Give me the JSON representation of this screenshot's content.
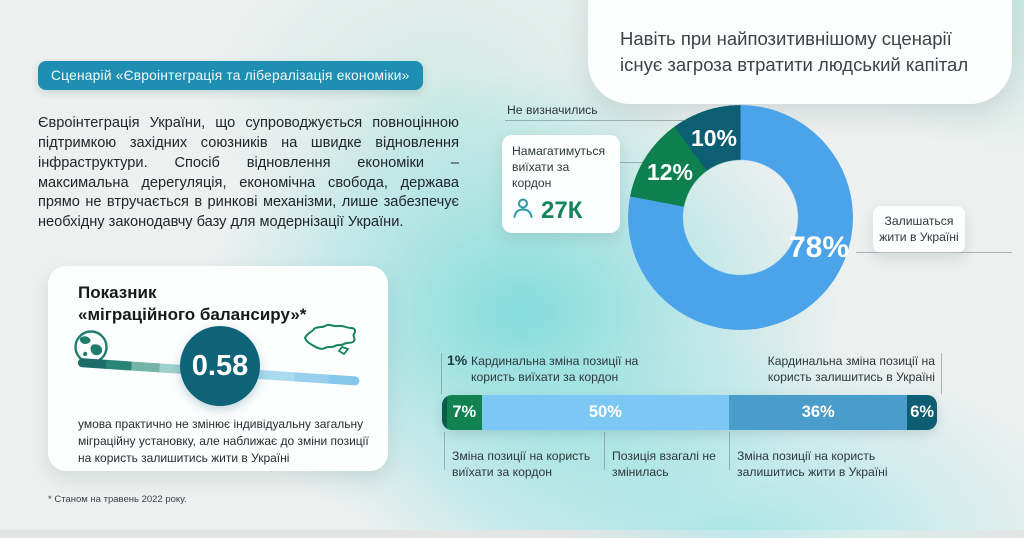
{
  "scenario": {
    "badge": "Сценарій «Євроінтеграція та лібералізація економіки»",
    "badge_color": "#1e8eb2",
    "description": "Євроінтеграція України, що супроводжується повноцінною підтримкою західних союзників на швидке відновлення інфраструктури. Спосіб відновлення економіки – максимальна дерегуляція, економічна свобода, держава прямо не втручається в ринкові механізми, лише забезпечує необхідну законодавчу базу для модернізації України."
  },
  "headline": {
    "text": "Навіть при найпозитивнішому сценарії існує загроза втратити людський капітал"
  },
  "balance_card": {
    "title_line1": "Показник",
    "title_line2": "«міграційного балансиру»*",
    "value": "0.58",
    "caption": "умова практично не змінює індивідуальну загальну міграційну установку, але наближає до зміни позиції на користь залишитись жити в Україні"
  },
  "footnote": "* Станом на травень 2022 року.",
  "chart_data": [
    {
      "type": "pie",
      "subtype": "donut",
      "title": "Навіть при найпозитивнішому сценарії існує загроза втратити людський капітал",
      "start_angle_deg": 0,
      "direction": "clockwise",
      "segments": [
        {
          "label": "Залишаться жити в Україні",
          "value": 78,
          "value_label": "78%",
          "color": "#4ba3e9"
        },
        {
          "label": "Намагатимуться виїхати за кордон",
          "value": 12,
          "value_label": "12%",
          "color": "#0e8050"
        },
        {
          "label": "Не визначились",
          "value": 10,
          "value_label": "10%",
          "color": "#0c5e73"
        }
      ],
      "callouts": {
        "undecided": "Не визначились",
        "emigrate": {
          "text": "Намагатимуться виїхати за кордон",
          "count": "27К"
        },
        "stay": {
          "text": "Залишаться жити в Україні"
        }
      }
    },
    {
      "type": "bar",
      "subtype": "horizontal-stacked",
      "xlim": [
        0,
        100
      ],
      "segments": [
        {
          "label": "Кардинальна зміна позиції на користь виїхати за кордон",
          "value": 1,
          "value_label": "",
          "color": "#0b5b49"
        },
        {
          "label": "Зміна позиції на користь виїхати за кордон",
          "value": 7,
          "value_label": "7%",
          "color": "#128253"
        },
        {
          "label": "Позиція взагалі не змінилась",
          "value": 50,
          "value_label": "50%",
          "color": "#7cc7f3"
        },
        {
          "label": "Зміна позиції на користь залишитись жити в Україні",
          "value": 36,
          "value_label": "36%",
          "color": "#4a9ccb"
        },
        {
          "label": "Кардинальна зміна позиції на користь залишитись в Україні",
          "value": 6,
          "value_label": "6%",
          "color": "#0d5d73"
        }
      ],
      "annotations": {
        "top_left_value": "1%",
        "top_left": "Кардинальна зміна позиції на користь виїхати за кордон",
        "top_right": "Кардинальна зміна позиції на користь залишитись в Україні",
        "bottom_left": "Зміна позиції на користь виїхати за кордон",
        "bottom_mid": "Позиція взагалі не змінилась",
        "bottom_right": "Зміна позиції на користь залишитись жити в Україні"
      }
    }
  ]
}
